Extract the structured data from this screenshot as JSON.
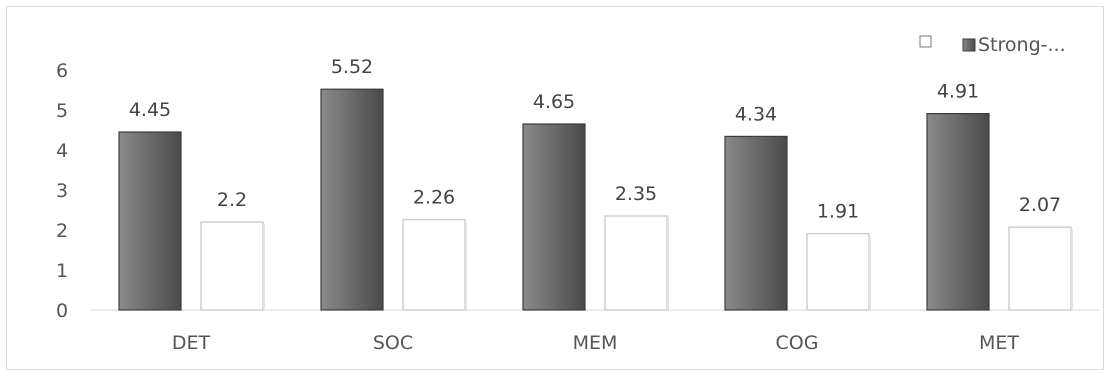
{
  "chart_data": {
    "type": "bar",
    "categories": [
      "DET",
      "SOC",
      "MEM",
      "COG",
      "MET"
    ],
    "series": [
      {
        "name": "",
        "color": "#6e6e6e",
        "values": [
          4.45,
          5.52,
          4.65,
          4.34,
          4.91
        ]
      },
      {
        "name": "",
        "color": "#ffffff",
        "values": [
          2.2,
          2.26,
          2.35,
          1.91,
          2.07
        ]
      }
    ],
    "data_labels": [
      [
        "4.45",
        "5.52",
        "4.65",
        "4.34",
        "4.91"
      ],
      [
        "2.2",
        "2.26",
        "2.35",
        "1.91",
        "2.07"
      ]
    ],
    "yticks": [
      "0",
      "1",
      "2",
      "3",
      "4",
      "5",
      "6"
    ],
    "ylim": [
      0,
      6
    ],
    "legend": {
      "position": "top-right",
      "entries": [
        {
          "label": "",
          "color": "#ffffff"
        },
        {
          "label": "Strong-...",
          "color": "#6e6e6e"
        }
      ]
    },
    "grid": false,
    "title": "",
    "xlabel": "",
    "ylabel": ""
  }
}
